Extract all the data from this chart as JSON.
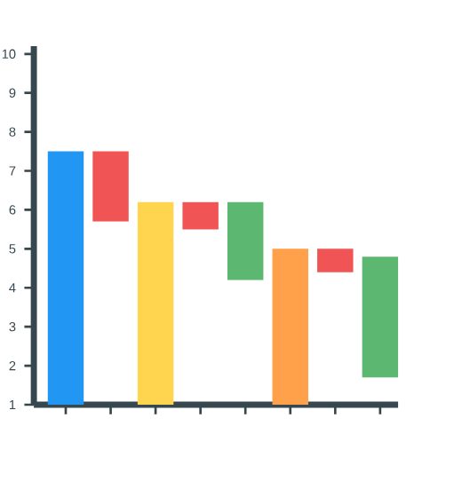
{
  "chart_data": {
    "type": "bar",
    "categories": [
      null,
      null,
      null,
      null,
      null,
      null,
      null,
      null
    ],
    "base": [
      1,
      5.7,
      1,
      5.5,
      4.2,
      1,
      4.4,
      1.7
    ],
    "values": [
      6.5,
      1.8,
      5.2,
      0.7,
      2.0,
      4.0,
      0.6,
      3.1
    ],
    "colors": [
      "#2196f3",
      "#f05454",
      "#ffd54f",
      "#f05454",
      "#5cb870",
      "#ffa04a",
      "#f05454",
      "#5cb870"
    ],
    "ylim": [
      1,
      10.2
    ],
    "yticks": [
      1,
      2,
      3,
      4,
      5,
      6,
      7,
      8,
      9,
      10
    ],
    "tick_labels": "y"
  }
}
